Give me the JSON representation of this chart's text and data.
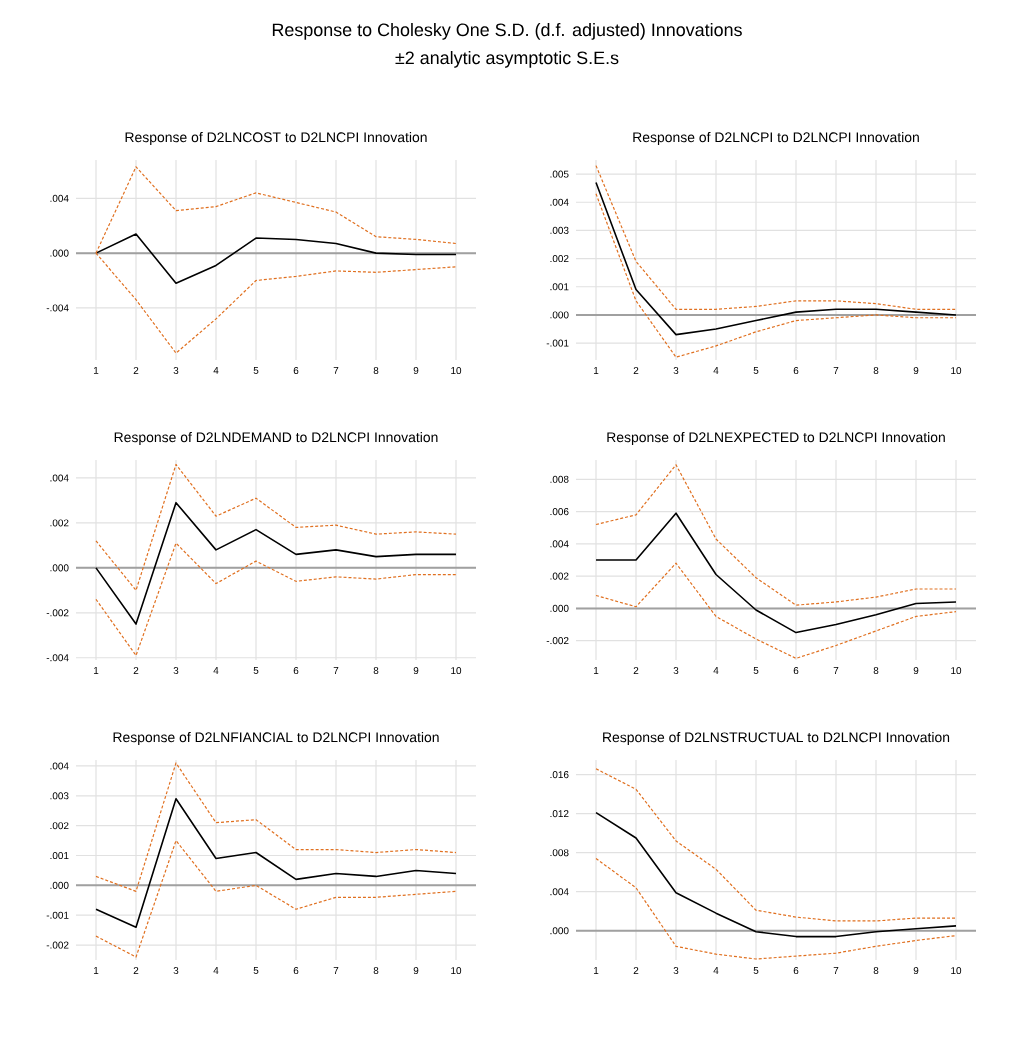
{
  "chart_data": [
    {
      "type": "line",
      "title": "Response of D2LNCOST to D2LNCPI Innovation",
      "annotations": [
        "Response to Cholesky One S.D. (d.f. adjusted) Innovations",
        "±2 analytic asymptotic S.E.s"
      ],
      "x": [
        1,
        2,
        3,
        4,
        5,
        6,
        7,
        8,
        9,
        10
      ],
      "xlim": [
        0.5,
        10.5
      ],
      "xticks": [
        1,
        2,
        3,
        4,
        5,
        6,
        7,
        8,
        9,
        10
      ],
      "ylim": [
        -0.0078,
        0.0068
      ],
      "yticks": [
        {
          "value": 0.004,
          "label": ".004"
        },
        {
          "value": 0,
          "label": ".000"
        },
        {
          "value": -0.004,
          "label": "-.004"
        }
      ],
      "grid": true,
      "ref_lines": [
        {
          "axis": "y",
          "value": 0,
          "color": "#a0a0a0"
        }
      ],
      "series": [
        {
          "color": "#000000",
          "line_style": "solid",
          "values": [
            0,
            0.0014,
            -0.0022,
            -0.0009,
            0.0011,
            0.001,
            0.0007,
            0,
            -0.0001,
            -0.0001
          ]
        },
        {
          "color": "#e07020",
          "line_style": "dashed",
          "values": [
            0,
            0.0063,
            0.0031,
            0.0034,
            0.0044,
            0.0037,
            0.003,
            0.0012,
            0.001,
            0.0007
          ]
        },
        {
          "color": "#e07020",
          "line_style": "dashed",
          "values": [
            0,
            -0.0034,
            -0.0073,
            -0.0048,
            -0.002,
            -0.0017,
            -0.0013,
            -0.0014,
            -0.0012,
            -0.001
          ]
        }
      ]
    },
    {
      "type": "line",
      "title": "Response of D2LNCPI to D2LNCPI Innovation",
      "x": [
        1,
        2,
        3,
        4,
        5,
        6,
        7,
        8,
        9,
        10
      ],
      "xlim": [
        0.5,
        10.5
      ],
      "xticks": [
        1,
        2,
        3,
        4,
        5,
        6,
        7,
        8,
        9,
        10
      ],
      "ylim": [
        -0.0016,
        0.0055
      ],
      "yticks": [
        {
          "value": 0.005,
          "label": ".005"
        },
        {
          "value": 0.004,
          "label": ".004"
        },
        {
          "value": 0.003,
          "label": ".003"
        },
        {
          "value": 0.002,
          "label": ".002"
        },
        {
          "value": 0.001,
          "label": ".001"
        },
        {
          "value": 0,
          "label": ".000"
        },
        {
          "value": -0.001,
          "label": "-.001"
        }
      ],
      "grid": true,
      "ref_lines": [
        {
          "axis": "y",
          "value": 0,
          "color": "#a0a0a0"
        }
      ],
      "series": [
        {
          "color": "#000000",
          "line_style": "solid",
          "values": [
            0.0047,
            0.0009,
            -0.0007,
            -0.0005,
            -0.0002,
            0.0001,
            0.0002,
            0.0002,
            0.0001,
            0
          ]
        },
        {
          "color": "#e07020",
          "line_style": "dashed",
          "values": [
            0.0053,
            0.0019,
            0.0002,
            0.0002,
            0.0003,
            0.0005,
            0.0005,
            0.0004,
            0.0002,
            0.0002
          ]
        },
        {
          "color": "#e07020",
          "line_style": "dashed",
          "values": [
            0.0043,
            0.0005,
            -0.0015,
            -0.0011,
            -0.0006,
            -0.0002,
            -0.0001,
            0,
            -0.0001,
            -0.0001
          ]
        }
      ]
    },
    {
      "type": "line",
      "title": "Response of D2LNDEMAND to D2LNCPI Innovation",
      "x": [
        1,
        2,
        3,
        4,
        5,
        6,
        7,
        8,
        9,
        10
      ],
      "xlim": [
        0.5,
        10.5
      ],
      "xticks": [
        1,
        2,
        3,
        4,
        5,
        6,
        7,
        8,
        9,
        10
      ],
      "ylim": [
        -0.0041,
        0.0048
      ],
      "yticks": [
        {
          "value": 0.004,
          "label": ".004"
        },
        {
          "value": 0.002,
          "label": ".002"
        },
        {
          "value": 0,
          "label": ".000"
        },
        {
          "value": -0.002,
          "label": "-.002"
        },
        {
          "value": -0.004,
          "label": "-.004"
        }
      ],
      "grid": true,
      "ref_lines": [
        {
          "axis": "y",
          "value": 0,
          "color": "#a0a0a0"
        }
      ],
      "series": [
        {
          "color": "#000000",
          "line_style": "solid",
          "values": [
            0,
            -0.0025,
            0.0029,
            0.0008,
            0.0017,
            0.0006,
            0.0008,
            0.0005,
            0.0006,
            0.0006
          ]
        },
        {
          "color": "#e07020",
          "line_style": "dashed",
          "values": [
            0.0012,
            -0.001,
            0.0046,
            0.0023,
            0.0031,
            0.0018,
            0.0019,
            0.0015,
            0.0016,
            0.0015
          ]
        },
        {
          "color": "#e07020",
          "line_style": "dashed",
          "values": [
            -0.0014,
            -0.0039,
            0.0011,
            -0.0007,
            0.0003,
            -0.0006,
            -0.0004,
            -0.0005,
            -0.0003,
            -0.0003
          ]
        }
      ]
    },
    {
      "type": "line",
      "title": "Response of D2LNEXPECTED to D2LNCPI Innovation",
      "x": [
        1,
        2,
        3,
        4,
        5,
        6,
        7,
        8,
        9,
        10
      ],
      "xlim": [
        0.5,
        10.5
      ],
      "xticks": [
        1,
        2,
        3,
        4,
        5,
        6,
        7,
        8,
        9,
        10
      ],
      "ylim": [
        -0.0032,
        0.0092
      ],
      "yticks": [
        {
          "value": 0.008,
          "label": ".008"
        },
        {
          "value": 0.006,
          "label": ".006"
        },
        {
          "value": 0.004,
          "label": ".004"
        },
        {
          "value": 0.002,
          "label": ".002"
        },
        {
          "value": 0,
          "label": ".000"
        },
        {
          "value": -0.002,
          "label": "-.002"
        }
      ],
      "grid": true,
      "ref_lines": [
        {
          "axis": "y",
          "value": 0,
          "color": "#a0a0a0"
        }
      ],
      "series": [
        {
          "color": "#000000",
          "line_style": "solid",
          "values": [
            0.003,
            0.003,
            0.0059,
            0.0021,
            -0.0001,
            -0.0015,
            -0.001,
            -0.0004,
            0.0003,
            0.0004
          ]
        },
        {
          "color": "#e07020",
          "line_style": "dashed",
          "values": [
            0.0052,
            0.0058,
            0.0089,
            0.0043,
            0.0019,
            0.0002,
            0.0004,
            0.0007,
            0.0012,
            0.0012
          ]
        },
        {
          "color": "#e07020",
          "line_style": "dashed",
          "values": [
            0.0008,
            0.0001,
            0.0028,
            -0.0005,
            -0.0019,
            -0.0031,
            -0.0023,
            -0.0014,
            -0.0005,
            -0.0002
          ]
        }
      ]
    },
    {
      "type": "line",
      "title": "Response of D2LNFIANCIAL to D2LNCPI Innovation",
      "x": [
        1,
        2,
        3,
        4,
        5,
        6,
        7,
        8,
        9,
        10
      ],
      "xlim": [
        0.5,
        10.5
      ],
      "xticks": [
        1,
        2,
        3,
        4,
        5,
        6,
        7,
        8,
        9,
        10
      ],
      "ylim": [
        -0.0025,
        0.0042
      ],
      "yticks": [
        {
          "value": 0.004,
          "label": ".004"
        },
        {
          "value": 0.003,
          "label": ".003"
        },
        {
          "value": 0.002,
          "label": ".002"
        },
        {
          "value": 0.001,
          "label": ".001"
        },
        {
          "value": 0,
          "label": ".000"
        },
        {
          "value": -0.001,
          "label": "-.001"
        },
        {
          "value": -0.002,
          "label": "-.002"
        }
      ],
      "grid": true,
      "ref_lines": [
        {
          "axis": "y",
          "value": 0,
          "color": "#a0a0a0"
        }
      ],
      "series": [
        {
          "color": "#000000",
          "line_style": "solid",
          "values": [
            -0.0008,
            -0.0014,
            0.0029,
            0.0009,
            0.0011,
            0.0002,
            0.0004,
            0.0003,
            0.0005,
            0.0004
          ]
        },
        {
          "color": "#e07020",
          "line_style": "dashed",
          "values": [
            0.0003,
            -0.0002,
            0.0041,
            0.0021,
            0.0022,
            0.0012,
            0.0012,
            0.0011,
            0.0012,
            0.0011
          ]
        },
        {
          "color": "#e07020",
          "line_style": "dashed",
          "values": [
            -0.0017,
            -0.0024,
            0.0015,
            -0.0002,
            0,
            -0.0008,
            -0.0004,
            -0.0004,
            -0.0003,
            -0.0002
          ]
        }
      ]
    },
    {
      "type": "line",
      "title": "Response of D2LNSTRUCTUAL to D2LNCPI Innovation",
      "x": [
        1,
        2,
        3,
        4,
        5,
        6,
        7,
        8,
        9,
        10
      ],
      "xlim": [
        0.5,
        10.5
      ],
      "xticks": [
        1,
        2,
        3,
        4,
        5,
        6,
        7,
        8,
        9,
        10
      ],
      "ylim": [
        -0.003,
        0.0175
      ],
      "yticks": [
        {
          "value": 0.016,
          "label": ".016"
        },
        {
          "value": 0.012,
          "label": ".012"
        },
        {
          "value": 0.008,
          "label": ".008"
        },
        {
          "value": 0.004,
          "label": ".004"
        },
        {
          "value": 0,
          "label": ".000"
        }
      ],
      "grid": true,
      "ref_lines": [
        {
          "axis": "y",
          "value": 0,
          "color": "#a0a0a0"
        }
      ],
      "series": [
        {
          "color": "#000000",
          "line_style": "solid",
          "values": [
            0.0121,
            0.0095,
            0.0039,
            0.0018,
            -0.0001,
            -0.0006,
            -0.0006,
            -0.0001,
            0.0002,
            0.0005
          ]
        },
        {
          "color": "#e07020",
          "line_style": "dashed",
          "values": [
            0.0166,
            0.0145,
            0.0092,
            0.0063,
            0.0021,
            0.0014,
            0.001,
            0.001,
            0.0013,
            0.0013
          ]
        },
        {
          "color": "#e07020",
          "line_style": "dashed",
          "values": [
            0.0074,
            0.0044,
            -0.0016,
            -0.0024,
            -0.0029,
            -0.0026,
            -0.0023,
            -0.0016,
            -0.001,
            -0.0005
          ]
        }
      ]
    }
  ]
}
